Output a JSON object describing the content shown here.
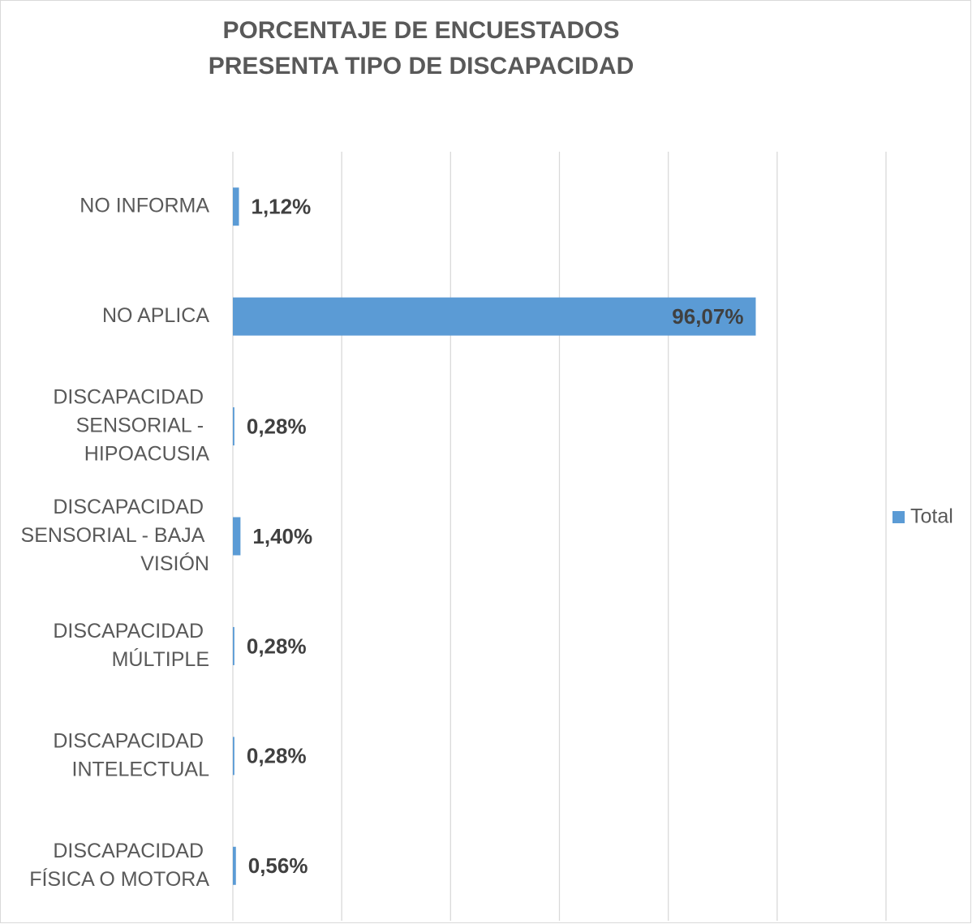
{
  "chart_data": {
    "type": "bar",
    "orientation": "horizontal",
    "title": [
      "PORCENTAJE DE ENCUESTADOS",
      "PRESENTA TIPO DE DISCAPACIDAD"
    ],
    "categories": [
      "NO INFORMA",
      "NO APLICA",
      "DISCAPACIDAD SENSORIAL - HIPOACUSIA",
      "DISCAPACIDAD SENSORIAL - BAJA VISIÓN",
      "DISCAPACIDAD MÚLTIPLE",
      "DISCAPACIDAD INTELECTUAL",
      "DISCAPACIDAD FÍSICA O MOTORA"
    ],
    "series": [
      {
        "name": "Total",
        "color": "#5b9bd5",
        "values": [
          1.12,
          96.07,
          0.28,
          1.4,
          0.28,
          0.28,
          0.56
        ],
        "value_labels": [
          "1,12%",
          "96,07%",
          "0,28%",
          "1,40%",
          "0,28%",
          "0,28%",
          "0,56%"
        ]
      }
    ],
    "xlim": [
      0,
      120
    ],
    "xticks": [
      0,
      20,
      40,
      60,
      80,
      100,
      120
    ],
    "grid": true,
    "legend": "right"
  }
}
